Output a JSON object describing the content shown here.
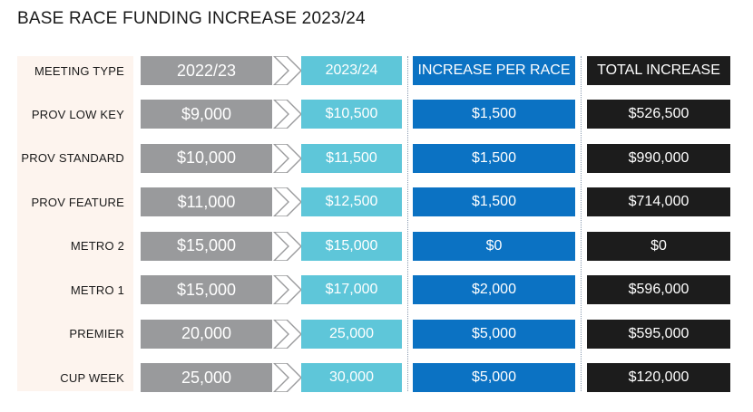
{
  "title": "BASE RACE FUNDING INCREASE 2023/24",
  "colors": {
    "col_2022": "#999a9c",
    "col_2023": "#5ec6d9",
    "col_increase": "#0b72c3",
    "col_total": "#1c1c1c",
    "label_panel": "#fdf4ee"
  },
  "header": {
    "meeting_type": "MEETING TYPE",
    "col_2022": "2022/23",
    "col_2023": "2023/24",
    "col_increase": "INCREASE PER RACE",
    "col_total": "TOTAL INCREASE"
  },
  "rows": [
    {
      "meeting_type": "PROV LOW KEY",
      "v2022": "$9,000",
      "v2023": "$10,500",
      "increase": "$1,500",
      "total": "$526,500"
    },
    {
      "meeting_type": "PROV STANDARD",
      "v2022": "$10,000",
      "v2023": "$11,500",
      "increase": "$1,500",
      "total": "$990,000"
    },
    {
      "meeting_type": "PROV FEATURE",
      "v2022": "$11,000",
      "v2023": "$12,500",
      "increase": "$1,500",
      "total": "$714,000"
    },
    {
      "meeting_type": "METRO 2",
      "v2022": "$15,000",
      "v2023": "$15,000",
      "increase": "$0",
      "total": "$0"
    },
    {
      "meeting_type": "METRO 1",
      "v2022": "$15,000",
      "v2023": "$17,000",
      "increase": "$2,000",
      "total": "$596,000"
    },
    {
      "meeting_type": "PREMIER",
      "v2022": "20,000",
      "v2023": "25,000",
      "increase": "$5,000",
      "total": "$595,000"
    },
    {
      "meeting_type": "CUP WEEK",
      "v2022": "25,000",
      "v2023": "30,000",
      "increase": "$5,000",
      "total": "$120,000"
    }
  ]
}
